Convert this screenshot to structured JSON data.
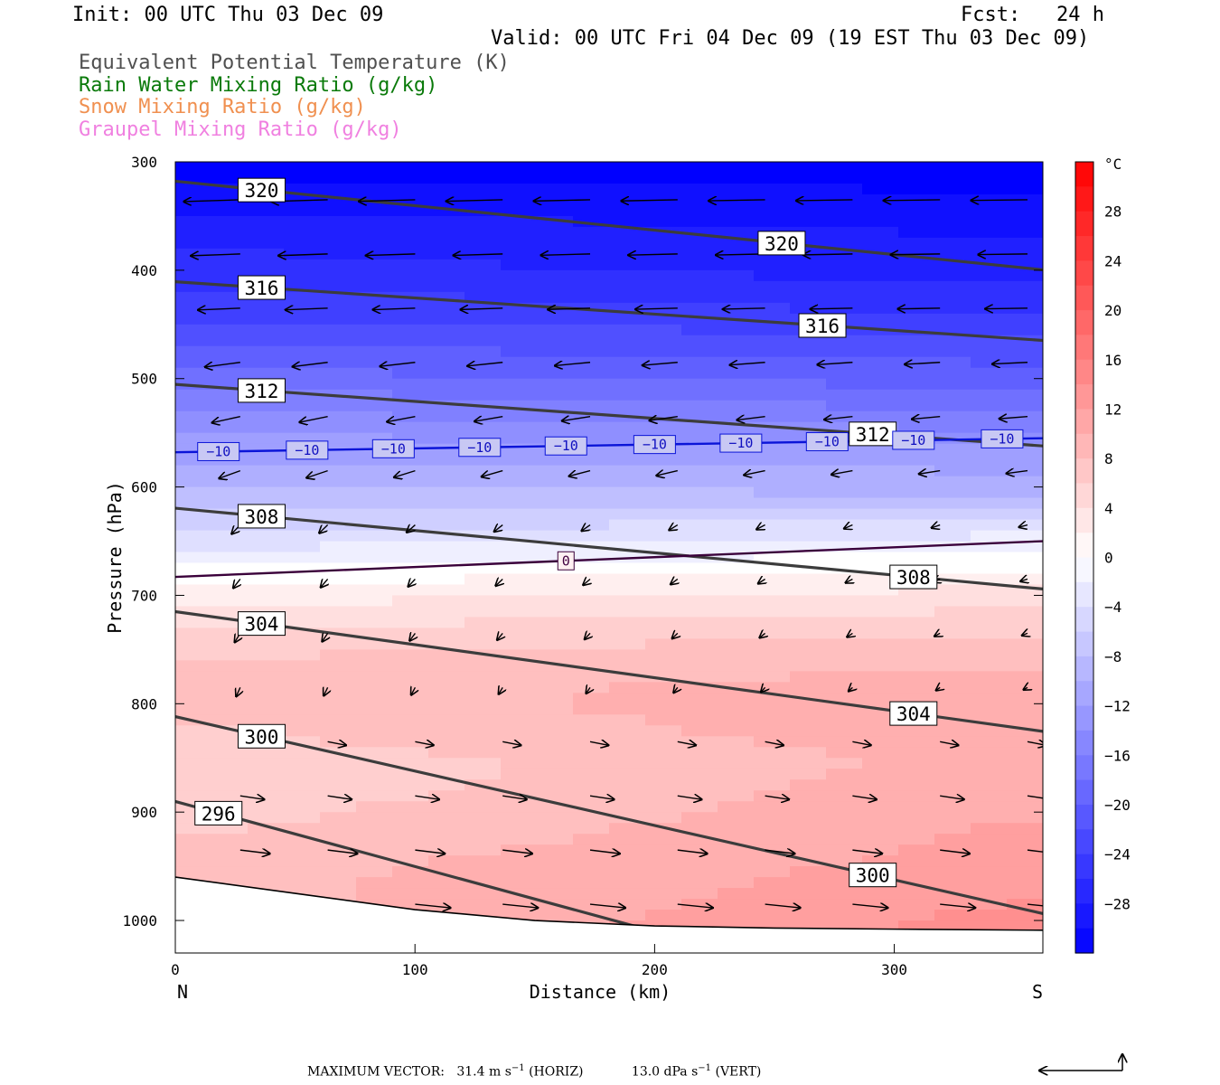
{
  "header": {
    "init": "Init: 00 UTC Thu 03 Dec 09",
    "fcst": "Fcst:   24 h",
    "valid": "Valid: 00 UTC Fri 04 Dec 09 (19 EST Thu 03 Dec 09)",
    "fields": [
      {
        "text": "Equivalent Potential Temperature (K)",
        "color": "#505050"
      },
      {
        "text": "Rain Water Mixing Ratio (g/kg)",
        "color": "#0a7a0a"
      },
      {
        "text": "Snow Mixing Ratio (g/kg)",
        "color": "#f09050"
      },
      {
        "text": "Graupel Mixing Ratio (g/kg)",
        "color": "#f080e0"
      }
    ]
  },
  "footer": {
    "label": "MAXIMUM VECTOR:",
    "horiz_value": "31.4 m s",
    "horiz_exp": "−1",
    "horiz_tag": "(HORIZ)",
    "vert_value": "13.0 dPa s",
    "vert_exp": "−1",
    "vert_tag": "(VERT)"
  },
  "chart_data": {
    "type": "heatmap",
    "subtype": "vertical cross-section",
    "xlabel": "Distance (km)",
    "ylabel": "Pressure (hPa)",
    "xlim": [
      0,
      362
    ],
    "ylim": [
      1030,
      300
    ],
    "x_ticks": [
      0,
      100,
      200,
      300
    ],
    "y_ticks": [
      300,
      400,
      500,
      600,
      700,
      800,
      900,
      1000
    ],
    "x_end_labels": {
      "left": "N",
      "right": "S"
    },
    "colorbar": {
      "unit": "°C",
      "range": [
        -32,
        32
      ],
      "ticks": [
        28,
        24,
        20,
        16,
        12,
        8,
        4,
        0,
        -4,
        -8,
        -12,
        -16,
        -20,
        -24,
        -28
      ],
      "cold_color": "#0000ff",
      "hot_color": "#ff0000",
      "neutral_color": "#ffffff"
    },
    "temperature_levels": [
      {
        "x": 0,
        "p": [
          [
            300,
            -32
          ],
          [
            330,
            -30
          ],
          [
            360,
            -28
          ],
          [
            380,
            -27
          ],
          [
            400,
            -26
          ],
          [
            430,
            -24
          ],
          [
            460,
            -22
          ],
          [
            500,
            -18
          ],
          [
            540,
            -14
          ],
          [
            600,
            -9
          ],
          [
            620,
            -7
          ],
          [
            650,
            -4
          ],
          [
            680,
            0
          ],
          [
            700,
            2
          ],
          [
            740,
            6
          ],
          [
            760,
            7
          ],
          [
            780,
            8
          ],
          [
            820,
            7
          ],
          [
            860,
            5
          ],
          [
            900,
            6
          ],
          [
            950,
            8
          ]
        ]
      },
      {
        "x": 362,
        "p": [
          [
            300,
            -32
          ],
          [
            330,
            -31
          ],
          [
            370,
            -29
          ],
          [
            400,
            -28
          ],
          [
            430,
            -26
          ],
          [
            460,
            -23
          ],
          [
            500,
            -20
          ],
          [
            540,
            -16
          ],
          [
            560,
            -13
          ],
          [
            600,
            -10
          ],
          [
            620,
            -7
          ],
          [
            650,
            -2
          ],
          [
            670,
            0
          ],
          [
            700,
            4
          ],
          [
            750,
            8
          ],
          [
            800,
            11
          ],
          [
            850,
            10
          ],
          [
            900,
            11
          ],
          [
            950,
            12
          ],
          [
            1005,
            14
          ]
        ]
      }
    ],
    "theta_e_contours": [
      {
        "value": 320,
        "label_pos": [
          [
            36,
            326
          ],
          [
            253,
            375
          ]
        ]
      },
      {
        "value": 316,
        "label_pos": [
          [
            36,
            416
          ],
          [
            270,
            451
          ]
        ]
      },
      {
        "value": 312,
        "label_pos": [
          [
            36,
            511
          ],
          [
            291,
            551
          ]
        ]
      },
      {
        "value": 308,
        "label_pos": [
          [
            36,
            627
          ],
          [
            308,
            683
          ]
        ]
      },
      {
        "value": 304,
        "label_pos": [
          [
            36,
            726
          ],
          [
            308,
            809
          ]
        ]
      },
      {
        "value": 300,
        "label_pos": [
          [
            36,
            830
          ],
          [
            291,
            958
          ]
        ]
      },
      {
        "value": 296,
        "label_pos": [
          [
            18,
            901
          ]
        ]
      }
    ],
    "isotherms": [
      {
        "value": -10,
        "label": "−10",
        "label_x": [
          18,
          55,
          91,
          127,
          163,
          200,
          236,
          272,
          308,
          345
        ]
      },
      {
        "value": 0,
        "label": "0",
        "label_x": [
          163
        ]
      }
    ],
    "surface_pressure": [
      [
        0,
        960
      ],
      [
        50,
        975
      ],
      [
        100,
        990
      ],
      [
        150,
        1000
      ],
      [
        200,
        1005
      ],
      [
        250,
        1007
      ],
      [
        300,
        1008
      ],
      [
        362,
        1009
      ]
    ]
  }
}
